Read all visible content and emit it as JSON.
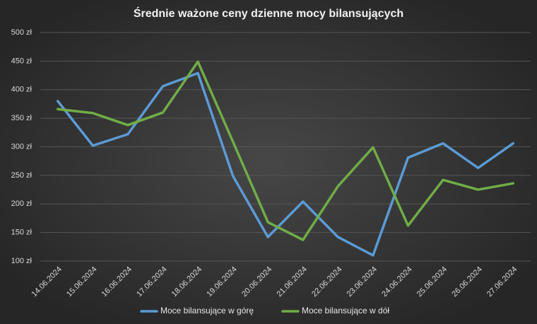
{
  "chart_data": {
    "type": "line",
    "title": "Średnie ważone ceny dzienne mocy bilansujących",
    "categories": [
      "14.06.2024",
      "15.06.2024",
      "16.06.2024",
      "17.06.2024",
      "18.06.2024",
      "19.06.2024",
      "20.06.2024",
      "21.06.2024",
      "22.06.2024",
      "23.06.2024",
      "24.06.2024",
      "25.06.2024",
      "26.06.2024",
      "27.06.2024"
    ],
    "series": [
      {
        "name": "Moce bilansujące w górę",
        "color": "#5b9bd5",
        "values": [
          380,
          302,
          322,
          406,
          429,
          249,
          142,
          204,
          142,
          110,
          281,
          306,
          263,
          306
        ]
      },
      {
        "name": "Moce bilansujące w dół",
        "color": "#70ad47",
        "values": [
          366,
          359,
          338,
          360,
          449,
          309,
          168,
          137,
          231,
          299,
          162,
          242,
          225,
          236
        ]
      }
    ],
    "ylim": [
      100,
      500
    ],
    "yticks": [
      {
        "value": 100,
        "label": "100 zł"
      },
      {
        "value": 150,
        "label": "150 zł"
      },
      {
        "value": 200,
        "label": "200 zł"
      },
      {
        "value": 250,
        "label": "250 zł"
      },
      {
        "value": 300,
        "label": "300 zł"
      },
      {
        "value": 350,
        "label": "350 zł"
      },
      {
        "value": 400,
        "label": "400 zł"
      },
      {
        "value": 450,
        "label": "450 zł"
      },
      {
        "value": 500,
        "label": "500 zł"
      }
    ],
    "grid": true,
    "legend": "bottom"
  }
}
